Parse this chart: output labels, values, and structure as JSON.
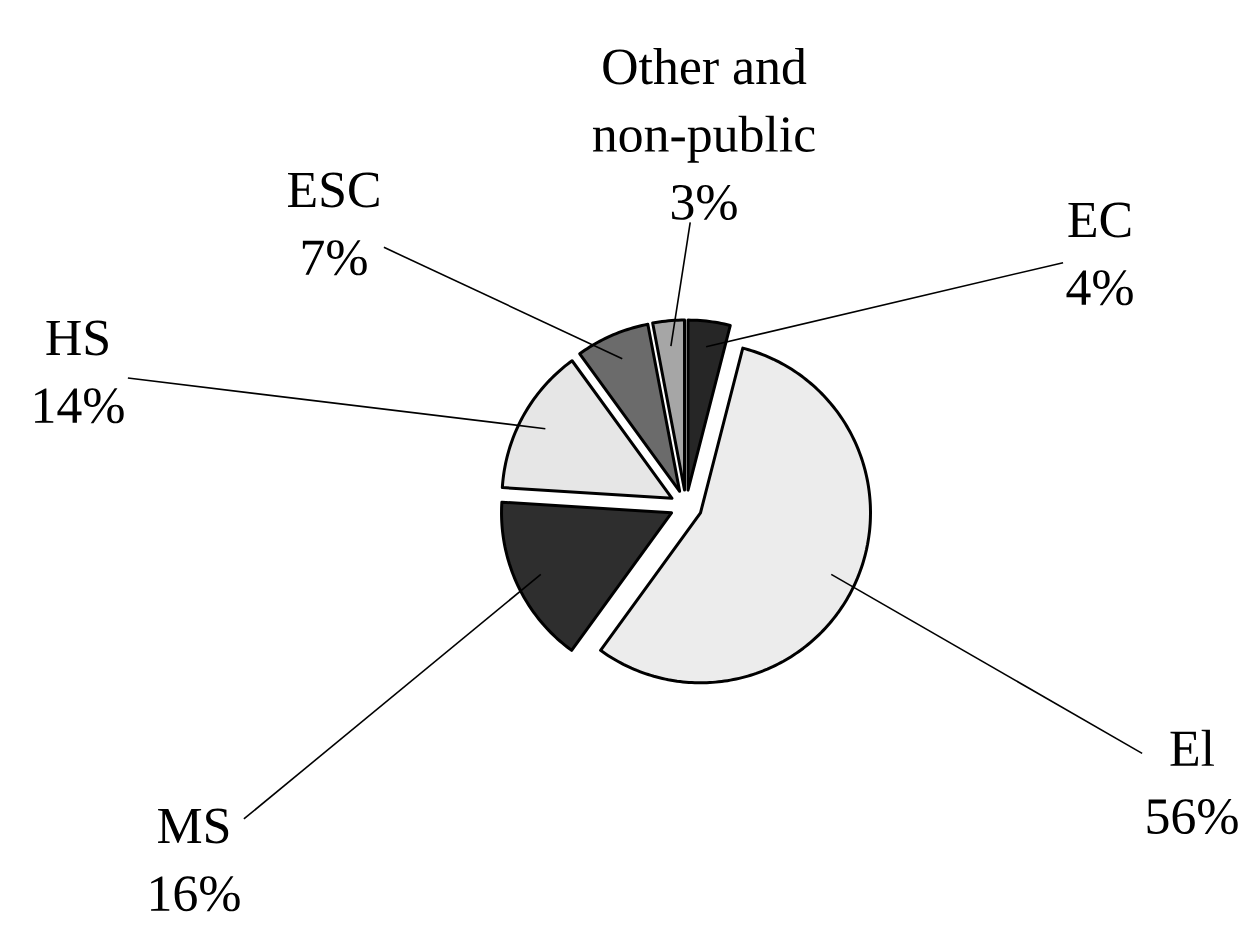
{
  "chart_data": {
    "type": "pie",
    "categories": [
      "EC",
      "El",
      "MS",
      "HS",
      "ESC",
      "Other and non-public"
    ],
    "values": [
      4,
      56,
      16,
      14,
      7,
      3
    ],
    "value_labels": [
      "4%",
      "56%",
      "16%",
      "14%",
      "7%",
      "3%"
    ],
    "colors": [
      "#262626",
      "#ececec",
      "#2e2e2e",
      "#e6e6e6",
      "#6b6b6b",
      "#a6a6a6"
    ]
  }
}
